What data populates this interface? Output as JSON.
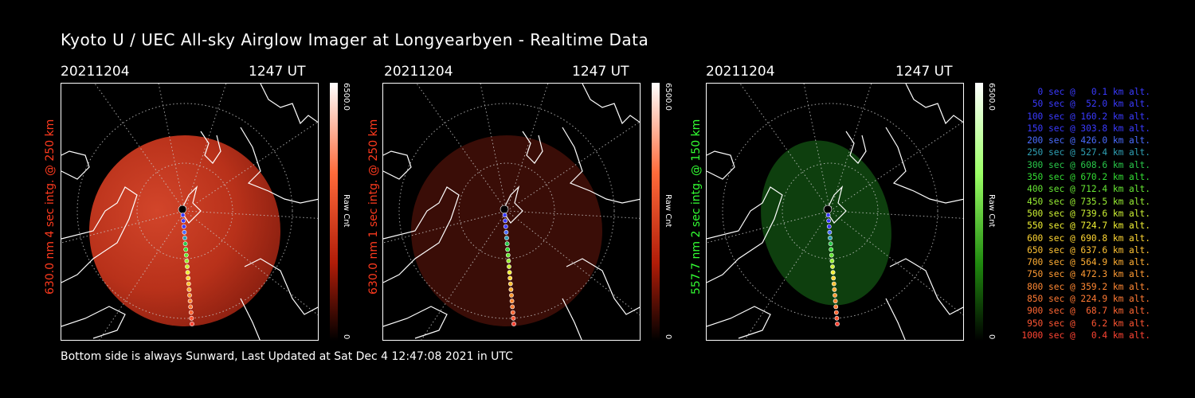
{
  "title": "Kyoto U / UEC All-sky Airglow Imager at Longyearbyen - Realtime Data",
  "footer": "Bottom side is always Sunward, Last Updated at Sat Dec  4 12:47:08 2021 in UTC",
  "panels": [
    {
      "date": "20211204",
      "time": "1247 UT",
      "label": "630.0 nm 4 sec intg. @ 250 km",
      "label_color": "#ff3a1e",
      "cbar_max": "6500.0",
      "cbar_min": "0",
      "cbar_unit": "Raw Cnt",
      "accent": "#c82a12"
    },
    {
      "date": "20211204",
      "time": "1247 UT",
      "label": "630.0 nm 1 sec intg. @ 250 km",
      "label_color": "#ff3a1e",
      "cbar_max": "6500.0",
      "cbar_min": "0",
      "cbar_unit": "Raw Cnt",
      "accent": "#3d0c06"
    },
    {
      "date": "20211204",
      "time": "1247 UT",
      "label": "557.7 nm 2 sec intg. @ 150 km",
      "label_color": "#33ff33",
      "cbar_max": "6500.0",
      "cbar_min": "0",
      "cbar_unit": "Raw Cnt",
      "accent": "#0e3d0e"
    }
  ],
  "legend": [
    {
      "text": "0 sec @   0.1 km alt.",
      "color": "#3a3aff"
    },
    {
      "text": "50 sec @  52.0 km alt.",
      "color": "#3a3aff"
    },
    {
      "text": "100 sec @ 160.2 km alt.",
      "color": "#3a3aff"
    },
    {
      "text": "150 sec @ 303.8 km alt.",
      "color": "#3a3aff"
    },
    {
      "text": "200 sec @ 426.0 km alt.",
      "color": "#4a6cff"
    },
    {
      "text": "250 sec @ 527.4 km alt.",
      "color": "#2fa0b4"
    },
    {
      "text": "300 sec @ 608.6 km alt.",
      "color": "#29c84a"
    },
    {
      "text": "350 sec @ 670.2 km alt.",
      "color": "#33dc33"
    },
    {
      "text": "400 sec @ 712.4 km alt.",
      "color": "#66e633"
    },
    {
      "text": "450 sec @ 735.5 km alt.",
      "color": "#99ee33"
    },
    {
      "text": "500 sec @ 739.6 km alt.",
      "color": "#ccf033"
    },
    {
      "text": "550 sec @ 724.7 km alt.",
      "color": "#f0f033"
    },
    {
      "text": "600 sec @ 690.8 km alt.",
      "color": "#ffd633"
    },
    {
      "text": "650 sec @ 637.6 km alt.",
      "color": "#ffc233"
    },
    {
      "text": "700 sec @ 564.9 km alt.",
      "color": "#ffae33"
    },
    {
      "text": "750 sec @ 472.3 km alt.",
      "color": "#ff9a33"
    },
    {
      "text": "800 sec @ 359.2 km alt.",
      "color": "#ff8833"
    },
    {
      "text": "850 sec @ 224.9 km alt.",
      "color": "#ff7a33"
    },
    {
      "text": "900 sec @  68.7 km alt.",
      "color": "#ff6633"
    },
    {
      "text": "950 sec @   6.2 km alt.",
      "color": "#ff5533"
    },
    {
      "text": "1000 sec @   0.4 km alt.",
      "color": "#ff4433"
    }
  ]
}
